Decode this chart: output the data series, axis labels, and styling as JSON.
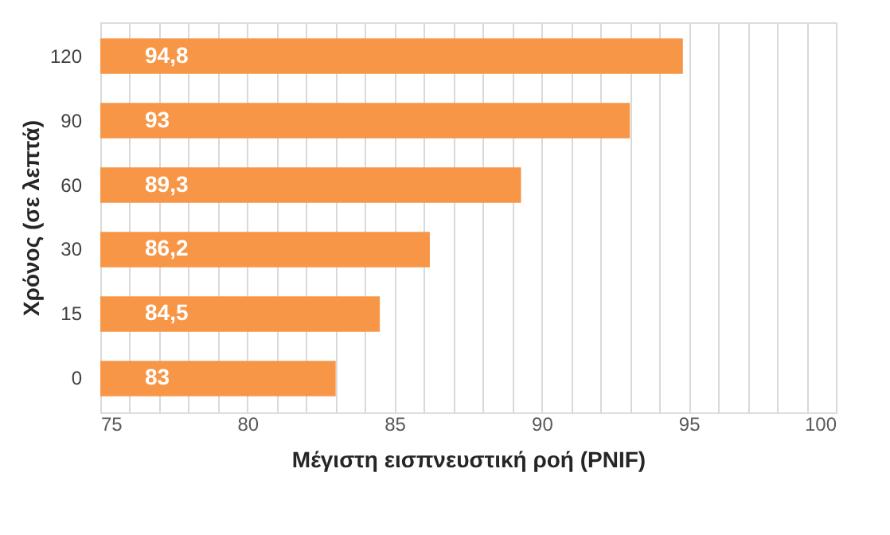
{
  "chart_data": {
    "type": "bar",
    "orientation": "horizontal",
    "xlabel": "Μέγιστη εισπνευστική ροή (PNIF)",
    "ylabel": "Χρόνος (σε λεπτά)",
    "categories": [
      "120",
      "90",
      "60",
      "30",
      "15",
      "0"
    ],
    "values": [
      94.8,
      93,
      89.3,
      86.2,
      84.5,
      83
    ],
    "value_labels": [
      "94,8",
      "93",
      "89,3",
      "86,2",
      "84,5",
      "83"
    ],
    "color": "#f79646",
    "xlim": [
      75,
      100
    ],
    "xticks": [
      75,
      {
        "value": 76,
        "label": null
      },
      {
        "value": 77,
        "label": null
      },
      {
        "value": 78,
        "label": null
      },
      {
        "value": 79,
        "label": null
      },
      80,
      {
        "value": 81,
        "label": null
      },
      {
        "value": 82,
        "label": null
      },
      {
        "value": 83,
        "label": null
      },
      {
        "value": 84,
        "label": null
      },
      85,
      {
        "value": 86,
        "label": null
      },
      {
        "value": 87,
        "label": null
      },
      {
        "value": 88,
        "label": null
      },
      {
        "value": 89,
        "label": null
      },
      90,
      {
        "value": 91,
        "label": null
      },
      {
        "value": 92,
        "label": null
      },
      {
        "value": 93,
        "label": null
      },
      {
        "value": 94,
        "label": null
      },
      95,
      {
        "value": 96,
        "label": null
      },
      {
        "value": 97,
        "label": null
      },
      {
        "value": 98,
        "label": null
      },
      {
        "value": 99,
        "label": null
      },
      100
    ],
    "grid": "x"
  }
}
